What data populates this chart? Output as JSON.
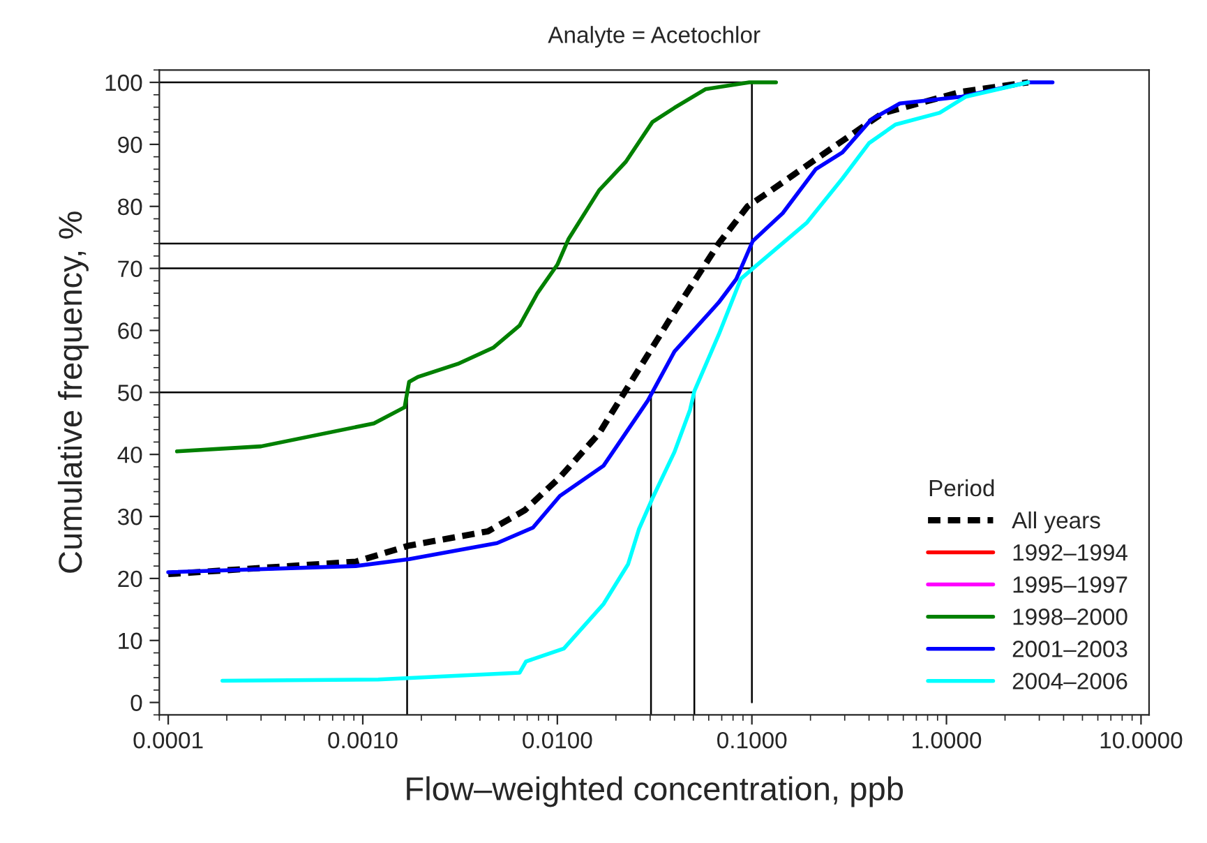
{
  "chart_data": {
    "type": "line",
    "title": "Analyte = Acetochlor",
    "xlabel": "Flow–weighted concentration, ppb",
    "ylabel": "Cumulative frequency, %",
    "legend_title": "Period",
    "legend": "bottom right",
    "log": "x",
    "xlim": [
      9e-05,
      11
    ],
    "xticks": [
      {
        "value": 0.0001,
        "label": "0.0001"
      },
      {
        "value": 0.001,
        "label": "0.0010"
      },
      {
        "value": 0.01,
        "label": "0.0100"
      },
      {
        "value": 0.1,
        "label": "0.1000"
      },
      {
        "value": 1,
        "label": "1.0000"
      },
      {
        "value": 10,
        "label": "10.0000"
      }
    ],
    "ylim": [
      -2,
      102
    ],
    "yticks": [
      0,
      10,
      20,
      30,
      40,
      50,
      60,
      70,
      80,
      90,
      100
    ],
    "grid": false,
    "series": [
      {
        "name": "All years",
        "color": "#000000",
        "line_style": "dashed",
        "x": [
          0.0001,
          0.00092,
          0.00173,
          0.0044,
          0.0068,
          0.0103,
          0.0164,
          0.0237,
          0.04,
          0.0675,
          0.095,
          0.126,
          0.213,
          0.468,
          1.2,
          2.63
        ],
        "values": [
          20.7,
          22.7,
          25.3,
          27.6,
          31,
          36.3,
          43.4,
          51.5,
          63,
          74,
          80,
          82.6,
          87.6,
          95,
          98.5,
          100
        ]
      },
      {
        "name": "1992–1994",
        "color": "#ff0000"
      },
      {
        "name": "1995–1997",
        "color": "#ff00ff"
      },
      {
        "name": "1998–2000",
        "color": "#008000",
        "x": [
          0.000111,
          0.0003,
          0.00114,
          0.00164,
          0.00173,
          0.00192,
          0.00308,
          0.00468,
          0.0064,
          0.0079,
          0.01,
          0.0114,
          0.0164,
          0.0225,
          0.0308,
          0.04,
          0.0577,
          0.097,
          0.133
        ],
        "values": [
          40.5,
          41.3,
          45,
          47.6,
          51.7,
          52.5,
          54.6,
          57.2,
          60.8,
          66,
          70.6,
          74.7,
          82.6,
          87.2,
          93.6,
          95.9,
          98.9,
          100,
          100
        ]
      },
      {
        "name": "2001–2003",
        "color": "#0000ff",
        "x": [
          0.0001,
          0.00092,
          0.00173,
          0.0049,
          0.0075,
          0.0103,
          0.0173,
          0.0292,
          0.04,
          0.0675,
          0.0832,
          0.101,
          0.144,
          0.213,
          0.292,
          0.41,
          0.576,
          1.2,
          2.63,
          3.51
        ],
        "values": [
          21,
          22,
          23.1,
          25.7,
          28.2,
          33.3,
          38.2,
          48.7,
          56.6,
          64.5,
          68.3,
          74.4,
          78.9,
          86,
          88.7,
          94,
          96.6,
          97.7,
          100,
          100
        ]
      },
      {
        "name": "2004–2006",
        "color": "#00ffff",
        "x": [
          0.00019,
          0.0012,
          0.0064,
          0.0069,
          0.0108,
          0.0173,
          0.0231,
          0.0263,
          0.0308,
          0.04,
          0.0481,
          0.0506,
          0.0675,
          0.0877,
          0.103,
          0.192,
          0.292,
          0.4,
          0.547,
          0.923,
          1.26,
          2.63
        ],
        "values": [
          3.5,
          3.7,
          4.8,
          6.6,
          8.7,
          15.9,
          22.3,
          28,
          32.9,
          40.4,
          47.2,
          50.2,
          59.3,
          68.3,
          70.2,
          77.4,
          84.5,
          90.2,
          93.2,
          95.1,
          97.7,
          100
        ]
      },
      {
        "color": "#000000",
        "x": [
          9e-05,
          0.1,
          0.1
        ],
        "values": [
          100,
          100,
          0
        ]
      },
      {
        "color": "#000000",
        "x": [
          9e-05,
          0.1
        ],
        "values": [
          74,
          74
        ]
      },
      {
        "color": "#000000",
        "x": [
          9e-05,
          0.1
        ],
        "values": [
          70,
          70
        ]
      },
      {
        "color": "#000000",
        "x": [
          9e-05,
          0.0506
        ],
        "values": [
          50,
          50
        ]
      },
      {
        "color": "#000000",
        "x": [
          0.00169,
          0.00169
        ],
        "values": [
          50,
          -2
        ]
      },
      {
        "color": "#000000",
        "x": [
          0.0303,
          0.0303
        ],
        "values": [
          50,
          -2
        ]
      },
      {
        "color": "#000000",
        "x": [
          0.0506,
          0.0506
        ],
        "values": [
          50,
          -2
        ]
      }
    ]
  }
}
